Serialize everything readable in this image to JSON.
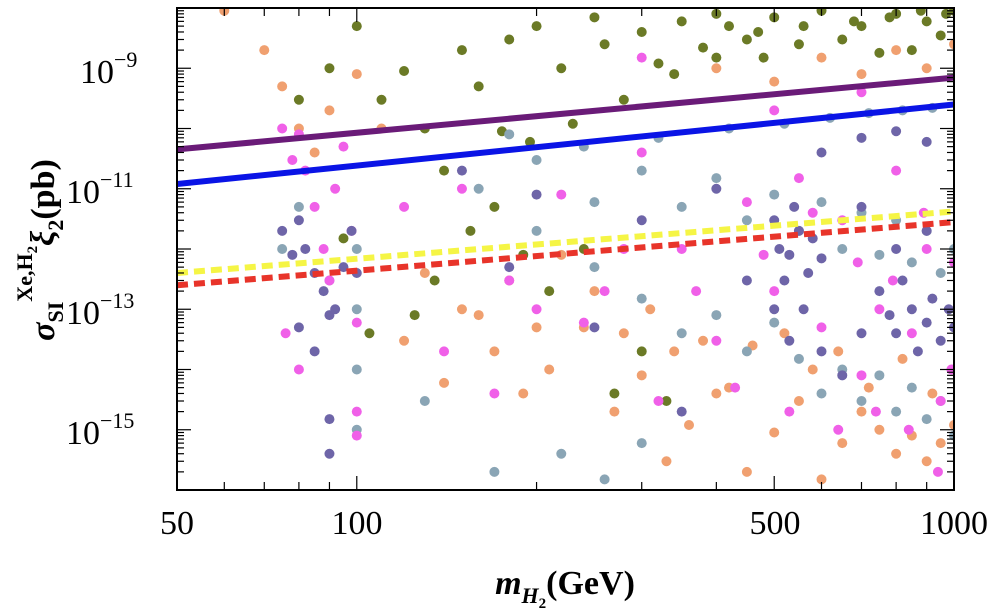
{
  "chart_data": {
    "type": "scatter",
    "title": "",
    "x_scale": "log",
    "y_scale": "log",
    "xlim": [
      50,
      1000
    ],
    "ylim": [
      1e-16,
      1e-08
    ],
    "xticks": [
      50,
      100,
      500,
      1000
    ],
    "xtick_labels": [
      "50",
      "100",
      "500",
      "1000"
    ],
    "yticks": [
      1e-09,
      1e-11,
      1e-13,
      1e-15
    ],
    "ytick_labels": [
      {
        "base": "10",
        "exp": "−9"
      },
      {
        "base": "10",
        "exp": "−11"
      },
      {
        "base": "10",
        "exp": "−13"
      },
      {
        "base": "10",
        "exp": "−15"
      }
    ],
    "xlabel": {
      "main": "m",
      "sub": "H",
      "subsub": "2",
      "unit": "(GeV)"
    },
    "ylabel": {
      "main": "σ",
      "sub": "SI",
      "sup": "Xe,H",
      "supsub": "2",
      "tail": "ξ",
      "tailsub": "2",
      "unit": "(pb)"
    },
    "grid": false,
    "colors": {
      "olive": "#6b7a26",
      "orange": "#f0a070",
      "grayblue": "#8aa5b5",
      "magenta": "#f060e8",
      "purple": "#6e65a8",
      "line_purple": "#6a1b78",
      "line_blue": "#0a14e6",
      "line_yellow": "#f5f545",
      "line_red": "#e8342a"
    },
    "lines": [
      {
        "style": "solid",
        "color": "#6a1b78",
        "x": [
          50,
          1000
        ],
        "y": [
          4.5e-11,
          7e-10
        ]
      },
      {
        "style": "solid",
        "color": "#0a14e6",
        "x": [
          50,
          1000
        ],
        "y": [
          1.2e-11,
          2.5e-10
        ]
      },
      {
        "style": "dashed",
        "color": "#f5f545",
        "x": [
          50,
          1000
        ],
        "y": [
          4e-13,
          4.2e-12
        ]
      },
      {
        "style": "dashed",
        "color": "#e8342a",
        "x": [
          50,
          1000
        ],
        "y": [
          2.5e-13,
          2.8e-12
        ]
      }
    ],
    "series": [
      {
        "color": "#6b7a26",
        "points": [
          [
            120,
            9e-10
          ],
          [
            150,
            2e-09
          ],
          [
            200,
            5e-09
          ],
          [
            250,
            7e-09
          ],
          [
            300,
            4e-09
          ],
          [
            350,
            6e-09
          ],
          [
            400,
            8e-09
          ],
          [
            450,
            3e-09
          ],
          [
            500,
            7e-09
          ],
          [
            600,
            9e-09
          ],
          [
            700,
            5e-09
          ],
          [
            800,
            8e-09
          ],
          [
            900,
            6e-09
          ],
          [
            1000,
            9e-09
          ],
          [
            110,
            3e-10
          ],
          [
            130,
            1e-10
          ],
          [
            160,
            5e-10
          ],
          [
            180,
            3e-09
          ],
          [
            220,
            1e-09
          ],
          [
            260,
            2.5e-09
          ],
          [
            320,
            1.2e-09
          ],
          [
            380,
            2.2e-09
          ],
          [
            420,
            5e-09
          ],
          [
            480,
            1.5e-09
          ],
          [
            550,
            2.5e-09
          ],
          [
            650,
            3e-09
          ],
          [
            750,
            1.8e-09
          ],
          [
            850,
            2e-09
          ],
          [
            950,
            3.5e-09
          ],
          [
            100,
            5e-09
          ],
          [
            90,
            1e-09
          ],
          [
            80,
            3e-10
          ],
          [
            140,
            2e-11
          ],
          [
            170,
            5e-12
          ],
          [
            190,
            8e-13
          ],
          [
            210,
            2e-13
          ],
          [
            240,
            1e-12
          ],
          [
            270,
            4e-15
          ],
          [
            300,
            2e-14
          ],
          [
            330,
            3e-15
          ],
          [
            95,
            1.5e-12
          ],
          [
            105,
            4e-14
          ],
          [
            125,
            8e-14
          ],
          [
            135,
            3e-13
          ],
          [
            155,
            2e-12
          ],
          [
            175,
            9e-11
          ],
          [
            195,
            6e-11
          ],
          [
            230,
            1.2e-10
          ],
          [
            280,
            3e-10
          ],
          [
            340,
            8e-10
          ],
          [
            400,
            1.5e-09
          ],
          [
            470,
            4e-09
          ],
          [
            560,
            5e-09
          ],
          [
            680,
            6e-09
          ],
          [
            780,
            7e-09
          ],
          [
            880,
            9e-09
          ],
          [
            970,
            8e-09
          ]
        ]
      },
      {
        "color": "#f0a070",
        "points": [
          [
            60,
            9e-09
          ],
          [
            70,
            2e-09
          ],
          [
            75,
            5e-10
          ],
          [
            80,
            1e-10
          ],
          [
            85,
            4e-11
          ],
          [
            90,
            2e-10
          ],
          [
            100,
            8e-10
          ],
          [
            110,
            1e-10
          ],
          [
            130,
            4e-13
          ],
          [
            150,
            1e-13
          ],
          [
            170,
            2e-14
          ],
          [
            190,
            4e-15
          ],
          [
            210,
            1e-14
          ],
          [
            240,
            5e-14
          ],
          [
            270,
            2e-15
          ],
          [
            300,
            8e-15
          ],
          [
            330,
            3e-16
          ],
          [
            360,
            1.2e-15
          ],
          [
            400,
            4e-15
          ],
          [
            450,
            2e-16
          ],
          [
            500,
            9e-16
          ],
          [
            550,
            3e-15
          ],
          [
            600,
            1.5e-16
          ],
          [
            650,
            6e-16
          ],
          [
            700,
            2e-15
          ],
          [
            750,
            1e-15
          ],
          [
            800,
            4e-16
          ],
          [
            850,
            8e-16
          ],
          [
            900,
            3e-16
          ],
          [
            950,
            6e-16
          ],
          [
            1000,
            1.2e-15
          ],
          [
            400,
            1e-09
          ],
          [
            500,
            6e-10
          ],
          [
            600,
            1.5e-09
          ],
          [
            700,
            8e-10
          ],
          [
            800,
            2e-09
          ],
          [
            900,
            1e-09
          ],
          [
            1000,
            2.5e-09
          ],
          [
            120,
            3e-14
          ],
          [
            140,
            6e-15
          ],
          [
            160,
            8e-14
          ],
          [
            180,
            3e-13
          ],
          [
            200,
            5e-14
          ],
          [
            220,
            8e-13
          ],
          [
            250,
            2e-13
          ],
          [
            280,
            4e-14
          ],
          [
            310,
            1e-13
          ],
          [
            340,
            2e-14
          ],
          [
            380,
            3e-14
          ],
          [
            420,
            5e-15
          ],
          [
            460,
            2.5e-14
          ],
          [
            520,
            4e-14
          ],
          [
            580,
            1e-14
          ],
          [
            640,
            2e-14
          ],
          [
            720,
            5e-15
          ],
          [
            820,
            1.5e-14
          ],
          [
            920,
            4e-15
          ]
        ]
      },
      {
        "color": "#8aa5b5",
        "points": [
          [
            160,
            1e-11
          ],
          [
            200,
            3e-11
          ],
          [
            250,
            6e-12
          ],
          [
            300,
            2e-11
          ],
          [
            350,
            5e-12
          ],
          [
            400,
            1.5e-11
          ],
          [
            450,
            3e-12
          ],
          [
            500,
            8e-12
          ],
          [
            550,
            2e-12
          ],
          [
            600,
            6e-12
          ],
          [
            650,
            1e-12
          ],
          [
            700,
            4e-12
          ],
          [
            750,
            8e-13
          ],
          [
            800,
            3e-12
          ],
          [
            850,
            6e-13
          ],
          [
            900,
            2e-12
          ],
          [
            950,
            4e-13
          ],
          [
            1000,
            1e-12
          ],
          [
            200,
            2e-12
          ],
          [
            250,
            5e-13
          ],
          [
            300,
            1.5e-13
          ],
          [
            350,
            4e-14
          ],
          [
            400,
            8e-14
          ],
          [
            450,
            2e-14
          ],
          [
            500,
            6e-14
          ],
          [
            550,
            1.5e-14
          ],
          [
            600,
            4e-15
          ],
          [
            650,
            1e-14
          ],
          [
            700,
            3e-15
          ],
          [
            750,
            8e-15
          ],
          [
            800,
            2e-15
          ],
          [
            850,
            5e-15
          ],
          [
            900,
            1.5e-15
          ],
          [
            950,
            3e-15
          ],
          [
            1000,
            8e-16
          ],
          [
            100,
            1e-13
          ],
          [
            100,
            1e-14
          ],
          [
            100,
            1e-15
          ],
          [
            100,
            1e-12
          ],
          [
            130,
            3e-15
          ],
          [
            170,
            2e-16
          ],
          [
            220,
            4e-16
          ],
          [
            260,
            1.5e-16
          ],
          [
            300,
            6e-16
          ],
          [
            180,
            8e-11
          ],
          [
            240,
            5e-11
          ],
          [
            320,
            7e-11
          ],
          [
            420,
            1e-10
          ],
          [
            520,
            1.2e-10
          ],
          [
            620,
            1.5e-10
          ],
          [
            720,
            1.8e-10
          ],
          [
            820,
            2e-10
          ],
          [
            920,
            2.2e-10
          ],
          [
            75,
            1e-12
          ],
          [
            80,
            5e-12
          ],
          [
            90,
            3e-13
          ]
        ]
      },
      {
        "color": "#f060e8",
        "points": [
          [
            75,
            1e-10
          ],
          [
            78,
            3e-11
          ],
          [
            80,
            8e-11
          ],
          [
            82,
            2e-11
          ],
          [
            85,
            5e-12
          ],
          [
            88,
            1e-12
          ],
          [
            90,
            3e-13
          ],
          [
            92,
            1e-11
          ],
          [
            95,
            5e-11
          ],
          [
            98,
            2e-12
          ],
          [
            100,
            6e-14
          ],
          [
            100,
            2e-15
          ],
          [
            100,
            8e-16
          ],
          [
            76,
            4e-14
          ],
          [
            80,
            1e-14
          ],
          [
            120,
            5e-12
          ],
          [
            150,
            1e-11
          ],
          [
            180,
            3e-13
          ],
          [
            220,
            8e-12
          ],
          [
            260,
            2e-13
          ],
          [
            300,
            4e-11
          ],
          [
            350,
            1e-12
          ],
          [
            400,
            3e-14
          ],
          [
            450,
            6e-12
          ],
          [
            500,
            2e-13
          ],
          [
            550,
            1.5e-11
          ],
          [
            600,
            5e-14
          ],
          [
            650,
            3e-12
          ],
          [
            700,
            8e-15
          ],
          [
            750,
            1e-13
          ],
          [
            800,
            2e-11
          ],
          [
            850,
            4e-14
          ],
          [
            900,
            1e-12
          ],
          [
            950,
            3e-15
          ],
          [
            1000,
            6e-13
          ],
          [
            140,
            2e-14
          ],
          [
            170,
            4e-15
          ],
          [
            200,
            1e-13
          ],
          [
            240,
            6e-14
          ],
          [
            280,
            1e-12
          ],
          [
            320,
            3e-15
          ],
          [
            370,
            2e-13
          ],
          [
            430,
            5e-15
          ],
          [
            480,
            8e-13
          ],
          [
            530,
            2e-15
          ],
          [
            580,
            4e-12
          ],
          [
            640,
            1e-15
          ],
          [
            690,
            6e-13
          ],
          [
            740,
            2e-15
          ],
          [
            790,
            3e-13
          ],
          [
            840,
            1e-15
          ],
          [
            890,
            4e-12
          ],
          [
            940,
            2e-16
          ],
          [
            990,
            1e-14
          ],
          [
            300,
            1.5e-09
          ],
          [
            500,
            2e-10
          ],
          [
            700,
            4e-10
          ]
        ]
      },
      {
        "color": "#6e65a8",
        "points": [
          [
            75,
            2e-12
          ],
          [
            78,
            8e-13
          ],
          [
            80,
            3e-12
          ],
          [
            82,
            1e-12
          ],
          [
            85,
            4e-13
          ],
          [
            88,
            2e-13
          ],
          [
            90,
            8e-14
          ],
          [
            92,
            1e-13
          ],
          [
            95,
            5e-13
          ],
          [
            98,
            2e-12
          ],
          [
            100,
            4e-13
          ],
          [
            80,
            5e-14
          ],
          [
            85,
            2e-14
          ],
          [
            90,
            1.5e-15
          ],
          [
            90,
            4e-16
          ],
          [
            500,
            3e-12
          ],
          [
            510,
            1e-12
          ],
          [
            520,
            3e-13
          ],
          [
            530,
            8e-13
          ],
          [
            540,
            5e-12
          ],
          [
            550,
            2e-12
          ],
          [
            560,
            1e-13
          ],
          [
            570,
            4e-13
          ],
          [
            580,
            1.5e-12
          ],
          [
            600,
            7e-13
          ],
          [
            500,
            1e-13
          ],
          [
            530,
            3e-14
          ],
          [
            750,
            2e-13
          ],
          [
            780,
            8e-14
          ],
          [
            800,
            4e-14
          ],
          [
            820,
            3e-13
          ],
          [
            850,
            1e-13
          ],
          [
            870,
            2e-14
          ],
          [
            900,
            6e-14
          ],
          [
            920,
            1.5e-13
          ],
          [
            950,
            3e-14
          ],
          [
            980,
            1e-13
          ],
          [
            1000,
            5e-14
          ],
          [
            800,
            1e-12
          ],
          [
            900,
            2e-12
          ],
          [
            700,
            5e-12
          ],
          [
            200,
            8e-12
          ],
          [
            300,
            3e-12
          ],
          [
            400,
            1e-11
          ],
          [
            250,
            5e-14
          ],
          [
            350,
            2e-15
          ],
          [
            450,
            3e-13
          ],
          [
            600,
            2e-14
          ],
          [
            650,
            8e-15
          ],
          [
            700,
            4e-14
          ],
          [
            150,
            2e-11
          ],
          [
            180,
            5e-13
          ],
          [
            600,
            4e-11
          ],
          [
            700,
            7e-11
          ],
          [
            800,
            9e-11
          ],
          [
            900,
            6e-11
          ]
        ]
      }
    ]
  }
}
